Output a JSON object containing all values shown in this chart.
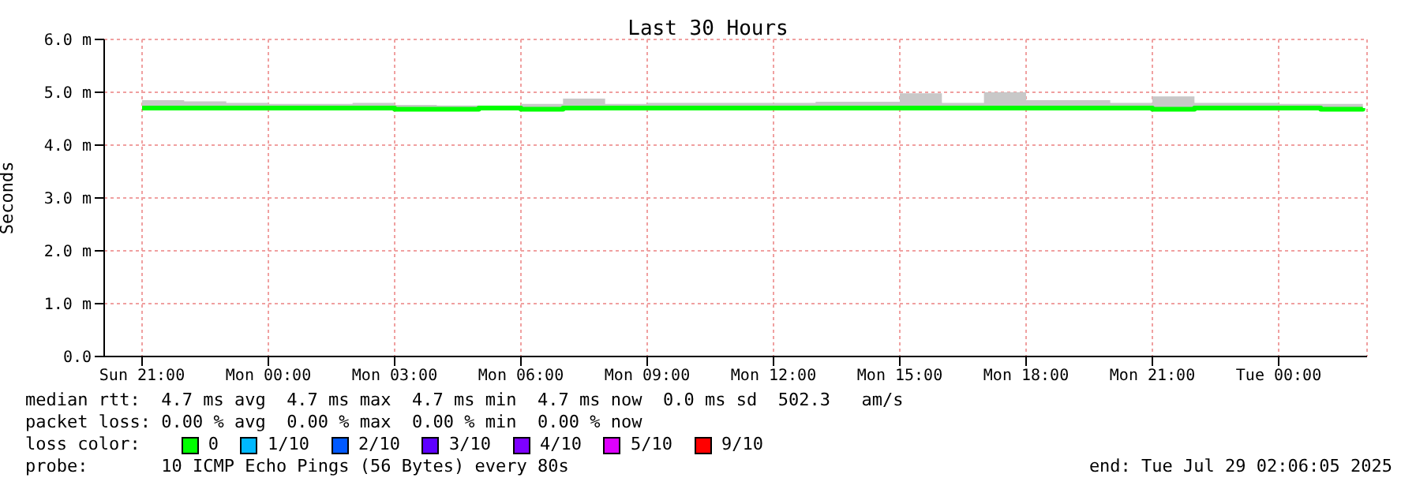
{
  "chart_data": {
    "type": "step",
    "title": "Last 30 Hours",
    "ylabel": "Seconds",
    "legend_title": "loss color:",
    "legend": "bottom",
    "grid": true,
    "x": [
      "2025-07-27T21:00",
      "2025-07-27T22:00",
      "2025-07-27T23:00",
      "2025-07-28T00:00",
      "2025-07-28T01:00",
      "2025-07-28T02:00",
      "2025-07-28T03:00",
      "2025-07-28T04:00",
      "2025-07-28T05:00",
      "2025-07-28T06:00",
      "2025-07-28T07:00",
      "2025-07-28T08:00",
      "2025-07-28T09:00",
      "2025-07-28T10:00",
      "2025-07-28T11:00",
      "2025-07-28T12:00",
      "2025-07-28T13:00",
      "2025-07-28T14:00",
      "2025-07-28T15:00",
      "2025-07-28T16:00",
      "2025-07-28T17:00",
      "2025-07-28T18:00",
      "2025-07-28T19:00",
      "2025-07-28T20:00",
      "2025-07-28T21:00",
      "2025-07-28T22:00",
      "2025-07-28T23:00",
      "2025-07-29T00:00",
      "2025-07-29T01:00",
      "2025-07-29T02:00"
    ],
    "xlim": [
      "2025-07-27T20:06",
      "2025-07-29T02:06"
    ],
    "xticks": [
      {
        "value": "2025-07-27T21:00",
        "label": "Sun 21:00"
      },
      {
        "value": "2025-07-28T00:00",
        "label": "Mon 00:00"
      },
      {
        "value": "2025-07-28T03:00",
        "label": "Mon 03:00"
      },
      {
        "value": "2025-07-28T06:00",
        "label": "Mon 06:00"
      },
      {
        "value": "2025-07-28T09:00",
        "label": "Mon 09:00"
      },
      {
        "value": "2025-07-28T12:00",
        "label": "Mon 12:00"
      },
      {
        "value": "2025-07-28T15:00",
        "label": "Mon 15:00"
      },
      {
        "value": "2025-07-28T18:00",
        "label": "Mon 18:00"
      },
      {
        "value": "2025-07-28T21:00",
        "label": "Mon 21:00"
      },
      {
        "value": "2025-07-29T00:00",
        "label": "Tue 00:00"
      }
    ],
    "ylim": [
      0,
      6
    ],
    "yticks": [
      {
        "value": 0,
        "label": "0.0"
      },
      {
        "value": 1,
        "label": "1.0 m"
      },
      {
        "value": 2,
        "label": "2.0 m"
      },
      {
        "value": 3,
        "label": "3.0 m"
      },
      {
        "value": 4,
        "label": "4.0 m"
      },
      {
        "value": 5,
        "label": "5.0 m"
      },
      {
        "value": 6,
        "label": "6.0 m"
      }
    ],
    "series": [
      {
        "name": "0",
        "color": "#00ff00",
        "values": [
          4.7,
          4.7,
          4.7,
          4.7,
          4.7,
          4.7,
          4.68,
          4.68,
          4.7,
          4.68,
          4.7,
          4.7,
          4.7,
          4.7,
          4.7,
          4.7,
          4.7,
          4.7,
          4.7,
          4.7,
          4.7,
          4.7,
          4.7,
          4.7,
          4.68,
          4.7,
          4.7,
          4.7,
          4.68,
          4.7
        ],
        "lower": [
          4.7,
          4.7,
          4.7,
          4.7,
          4.7,
          4.7,
          4.7,
          4.7,
          4.7,
          4.7,
          4.7,
          4.7,
          4.7,
          4.7,
          4.7,
          4.7,
          4.7,
          4.7,
          4.7,
          4.7,
          4.7,
          4.7,
          4.7,
          4.7,
          4.7,
          4.7,
          4.7,
          4.7,
          4.7,
          4.7
        ],
        "upper": [
          4.85,
          4.83,
          4.8,
          4.78,
          4.78,
          4.8,
          4.76,
          4.75,
          4.75,
          4.78,
          4.88,
          4.78,
          4.8,
          4.8,
          4.8,
          4.8,
          4.82,
          4.82,
          4.98,
          4.8,
          5.0,
          4.85,
          4.85,
          4.8,
          4.92,
          4.8,
          4.8,
          4.78,
          4.78,
          4.75
        ]
      },
      {
        "name": "1/10",
        "color": "#00b8ff",
        "values": [
          null,
          null,
          null,
          null,
          null,
          null,
          null,
          null,
          null,
          null,
          null,
          null,
          null,
          null,
          null,
          null,
          null,
          null,
          null,
          null,
          null,
          null,
          null,
          null,
          null,
          null,
          null,
          null,
          null,
          null
        ]
      },
      {
        "name": "2/10",
        "color": "#0059ff",
        "values": [
          null,
          null,
          null,
          null,
          null,
          null,
          null,
          null,
          null,
          null,
          null,
          null,
          null,
          null,
          null,
          null,
          null,
          null,
          null,
          null,
          null,
          null,
          null,
          null,
          null,
          null,
          null,
          null,
          null,
          null
        ]
      },
      {
        "name": "3/10",
        "color": "#5e00ff",
        "values": [
          null,
          null,
          null,
          null,
          null,
          null,
          null,
          null,
          null,
          null,
          null,
          null,
          null,
          null,
          null,
          null,
          null,
          null,
          null,
          null,
          null,
          null,
          null,
          null,
          null,
          null,
          null,
          null,
          null,
          null
        ]
      },
      {
        "name": "4/10",
        "color": "#7e00ff",
        "values": [
          null,
          null,
          null,
          null,
          null,
          null,
          null,
          null,
          null,
          null,
          null,
          null,
          null,
          null,
          null,
          null,
          null,
          null,
          null,
          null,
          null,
          null,
          null,
          null,
          null,
          null,
          null,
          null,
          null,
          null
        ]
      },
      {
        "name": "5/10",
        "color": "#dd00ff",
        "values": [
          null,
          null,
          null,
          null,
          null,
          null,
          null,
          null,
          null,
          null,
          null,
          null,
          null,
          null,
          null,
          null,
          null,
          null,
          null,
          null,
          null,
          null,
          null,
          null,
          null,
          null,
          null,
          null,
          null,
          null
        ]
      },
      {
        "name": "9/10",
        "color": "#ff0000",
        "values": [
          null,
          null,
          null,
          null,
          null,
          null,
          null,
          null,
          null,
          null,
          null,
          null,
          null,
          null,
          null,
          null,
          null,
          null,
          null,
          null,
          null,
          null,
          null,
          null,
          null,
          null,
          null,
          null,
          null,
          null
        ]
      }
    ],
    "annotations": [
      "median rtt:  4.7 ms avg  4.7 ms max  4.7 ms min  4.7 ms now  0.0 ms sd  502.3   am/s",
      "packet loss: 0.00 % avg  0.00 % max  0.00 % min  0.00 % now",
      "probe:       10 ICMP Echo Pings (56 Bytes) every 80s",
      "end: Tue Jul 29 02:06:05 2025"
    ]
  }
}
